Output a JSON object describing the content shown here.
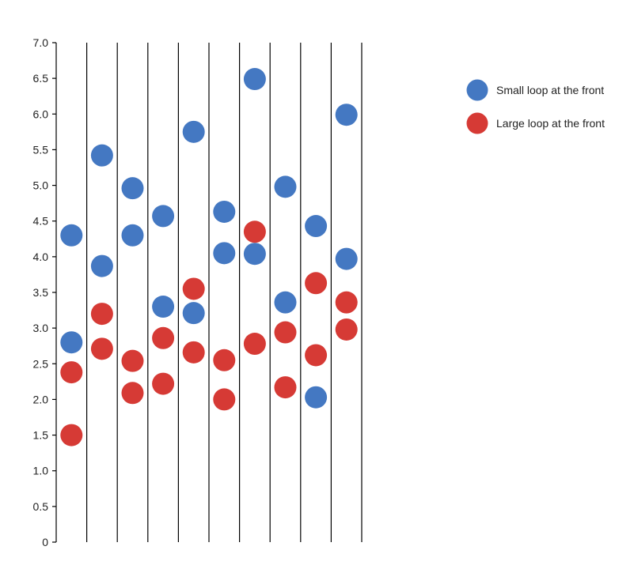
{
  "chart_data": {
    "type": "scatter",
    "title": "",
    "xlabel": "",
    "ylabel": "",
    "ylim": [
      0,
      7
    ],
    "yticks": [
      "0",
      "0.5",
      "1.0",
      "1.5",
      "2.0",
      "2.5",
      "3.0",
      "3.5",
      "4.0",
      "4.5",
      "5.0",
      "5.5",
      "6.0",
      "6.5",
      "7.0"
    ],
    "ytick_values": [
      0,
      0.5,
      1.0,
      1.5,
      2.0,
      2.5,
      3.0,
      3.5,
      4.0,
      4.5,
      5.0,
      5.5,
      6.0,
      6.5,
      7.0
    ],
    "columns": 10,
    "legend_position": "top-right",
    "series": [
      {
        "name": "Small loop at the front",
        "color": "#4478C2",
        "points": [
          {
            "col": 1,
            "y": 4.3
          },
          {
            "col": 1,
            "y": 2.8
          },
          {
            "col": 2,
            "y": 5.42
          },
          {
            "col": 2,
            "y": 3.87
          },
          {
            "col": 3,
            "y": 4.96
          },
          {
            "col": 3,
            "y": 4.3
          },
          {
            "col": 4,
            "y": 4.57
          },
          {
            "col": 4,
            "y": 3.3
          },
          {
            "col": 5,
            "y": 5.75
          },
          {
            "col": 5,
            "y": 3.21
          },
          {
            "col": 6,
            "y": 4.63
          },
          {
            "col": 6,
            "y": 4.05
          },
          {
            "col": 7,
            "y": 6.49
          },
          {
            "col": 7,
            "y": 4.04
          },
          {
            "col": 8,
            "y": 4.98
          },
          {
            "col": 8,
            "y": 3.36
          },
          {
            "col": 9,
            "y": 4.43
          },
          {
            "col": 9,
            "y": 2.03
          },
          {
            "col": 10,
            "y": 5.99
          },
          {
            "col": 10,
            "y": 3.97
          }
        ]
      },
      {
        "name": "Large loop at the front",
        "color": "#D63A35",
        "points": [
          {
            "col": 1,
            "y": 2.38
          },
          {
            "col": 1,
            "y": 1.5
          },
          {
            "col": 2,
            "y": 3.2
          },
          {
            "col": 2,
            "y": 2.71
          },
          {
            "col": 3,
            "y": 2.54
          },
          {
            "col": 3,
            "y": 2.09
          },
          {
            "col": 4,
            "y": 2.86
          },
          {
            "col": 4,
            "y": 2.22
          },
          {
            "col": 5,
            "y": 3.55
          },
          {
            "col": 5,
            "y": 2.66
          },
          {
            "col": 6,
            "y": 2.55
          },
          {
            "col": 6,
            "y": 2.0
          },
          {
            "col": 7,
            "y": 4.35
          },
          {
            "col": 7,
            "y": 2.78
          },
          {
            "col": 8,
            "y": 2.94
          },
          {
            "col": 8,
            "y": 2.17
          },
          {
            "col": 9,
            "y": 3.63
          },
          {
            "col": 9,
            "y": 2.62
          },
          {
            "col": 10,
            "y": 3.36
          },
          {
            "col": 10,
            "y": 2.98
          }
        ]
      }
    ]
  }
}
